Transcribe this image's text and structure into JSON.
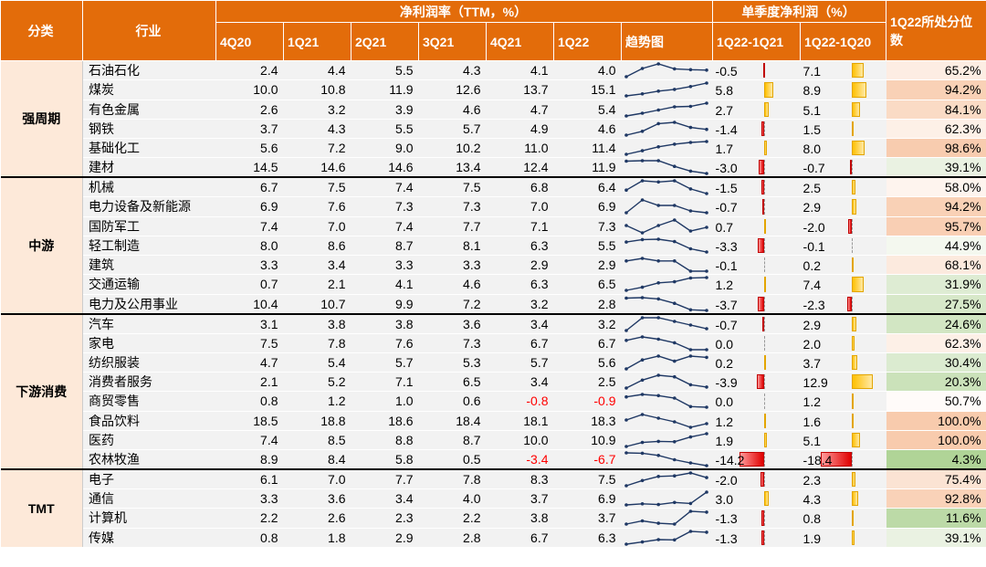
{
  "header": {
    "category": "分类",
    "industry": "行业",
    "ttm_group": "净利润率（TTM，%）",
    "quarter_group": "单季度净利润（%）",
    "percentile": "1Q22所处分位数",
    "periods": [
      "4Q20",
      "1Q21",
      "2Q21",
      "3Q21",
      "4Q21",
      "1Q22"
    ],
    "trend": "趋势图",
    "diff1": "1Q22-1Q21",
    "diff2": "1Q22-1Q20"
  },
  "colors": {
    "header_bg": "#e36c0a",
    "category_bg": "#fde9d9",
    "negative_text": "#ff0000",
    "bar_positive": "#ffc000",
    "bar_negative": "#e00000"
  },
  "chart_data": {
    "type": "table",
    "bar_scale_max_abs": 18.4,
    "groups": [
      {
        "name": "强周期",
        "rows": [
          {
            "industry": "石油石化",
            "ttm": [
              2.4,
              4.4,
              5.5,
              4.3,
              4.1,
              4.0
            ],
            "d1": -0.5,
            "d2": 7.1,
            "pct": "65.2%",
            "pct_value": 65.2
          },
          {
            "industry": "煤炭",
            "ttm": [
              10.0,
              10.8,
              11.9,
              12.6,
              13.7,
              15.1
            ],
            "d1": 5.8,
            "d2": 8.9,
            "pct": "94.2%",
            "pct_value": 94.2
          },
          {
            "industry": "有色金属",
            "ttm": [
              2.6,
              3.2,
              3.9,
              4.6,
              4.7,
              5.4
            ],
            "d1": 2.7,
            "d2": 5.1,
            "pct": "84.1%",
            "pct_value": 84.1
          },
          {
            "industry": "钢铁",
            "ttm": [
              3.7,
              4.3,
              5.5,
              5.7,
              4.9,
              4.6
            ],
            "d1": -1.4,
            "d2": 1.5,
            "pct": "62.3%",
            "pct_value": 62.3
          },
          {
            "industry": "基础化工",
            "ttm": [
              5.6,
              7.2,
              9.0,
              10.2,
              11.0,
              11.4
            ],
            "d1": 1.7,
            "d2": 8.0,
            "pct": "98.6%",
            "pct_value": 98.6
          },
          {
            "industry": "建材",
            "ttm": [
              14.5,
              14.6,
              14.6,
              13.4,
              12.4,
              11.9
            ],
            "d1": -3.0,
            "d2": -0.7,
            "pct": "39.1%",
            "pct_value": 39.1
          }
        ]
      },
      {
        "name": "中游",
        "rows": [
          {
            "industry": "机械",
            "ttm": [
              6.7,
              7.5,
              7.4,
              7.5,
              6.8,
              6.4
            ],
            "d1": -1.5,
            "d2": 2.5,
            "pct": "58.0%",
            "pct_value": 58.0
          },
          {
            "industry": "电力设备及新能源",
            "ttm": [
              6.9,
              7.6,
              7.3,
              7.3,
              7.0,
              6.9
            ],
            "d1": -0.7,
            "d2": 2.9,
            "pct": "94.2%",
            "pct_value": 94.2
          },
          {
            "industry": "国防军工",
            "ttm": [
              7.4,
              7.0,
              7.4,
              7.7,
              7.1,
              7.3
            ],
            "d1": 0.7,
            "d2": -2.0,
            "pct": "95.7%",
            "pct_value": 95.7
          },
          {
            "industry": "轻工制造",
            "ttm": [
              8.0,
              8.6,
              8.7,
              8.1,
              6.3,
              5.5
            ],
            "d1": -3.3,
            "d2": -0.1,
            "pct": "44.9%",
            "pct_value": 44.9
          },
          {
            "industry": "建筑",
            "ttm": [
              3.3,
              3.4,
              3.3,
              3.3,
              2.9,
              2.9
            ],
            "d1": -0.1,
            "d2": 0.2,
            "pct": "68.1%",
            "pct_value": 68.1
          },
          {
            "industry": "交通运输",
            "ttm": [
              0.7,
              2.1,
              4.1,
              4.6,
              6.3,
              6.5
            ],
            "d1": 1.2,
            "d2": 7.4,
            "pct": "31.9%",
            "pct_value": 31.9
          },
          {
            "industry": "电力及公用事业",
            "ttm": [
              10.4,
              10.7,
              9.9,
              7.2,
              3.2,
              2.8
            ],
            "d1": -3.7,
            "d2": -2.3,
            "pct": "27.5%",
            "pct_value": 27.5
          }
        ]
      },
      {
        "name": "下游消费",
        "rows": [
          {
            "industry": "汽车",
            "ttm": [
              3.1,
              3.8,
              3.8,
              3.6,
              3.4,
              3.2
            ],
            "d1": -0.7,
            "d2": 2.9,
            "pct": "24.6%",
            "pct_value": 24.6
          },
          {
            "industry": "家电",
            "ttm": [
              7.5,
              7.8,
              7.6,
              7.3,
              6.7,
              6.7
            ],
            "d1": 0.0,
            "d2": 2.0,
            "pct": "62.3%",
            "pct_value": 62.3
          },
          {
            "industry": "纺织服装",
            "ttm": [
              4.7,
              5.4,
              5.7,
              5.3,
              5.7,
              5.6
            ],
            "d1": 0.2,
            "d2": 3.7,
            "pct": "30.4%",
            "pct_value": 30.4
          },
          {
            "industry": "消费者服务",
            "ttm": [
              2.1,
              5.2,
              7.1,
              6.5,
              3.4,
              2.5
            ],
            "d1": -3.9,
            "d2": 12.9,
            "pct": "20.3%",
            "pct_value": 20.3
          },
          {
            "industry": "商贸零售",
            "ttm": [
              0.8,
              1.2,
              1.0,
              0.6,
              -0.8,
              -0.9
            ],
            "d1": 0.0,
            "d2": 1.2,
            "pct": "50.7%",
            "pct_value": 50.7
          },
          {
            "industry": "食品饮料",
            "ttm": [
              18.5,
              18.8,
              18.6,
              18.4,
              18.1,
              18.3
            ],
            "d1": 1.2,
            "d2": 1.6,
            "pct": "100.0%",
            "pct_value": 100.0
          },
          {
            "industry": "医药",
            "ttm": [
              7.4,
              8.5,
              8.8,
              8.7,
              10.0,
              10.9
            ],
            "d1": 1.9,
            "d2": 5.1,
            "pct": "100.0%",
            "pct_value": 100.0
          },
          {
            "industry": "农林牧渔",
            "ttm": [
              8.9,
              8.4,
              5.8,
              0.5,
              -3.4,
              -6.7
            ],
            "d1": -14.2,
            "d2": -18.4,
            "pct": "4.3%",
            "pct_value": 4.3
          }
        ]
      },
      {
        "name": "TMT",
        "rows": [
          {
            "industry": "电子",
            "ttm": [
              6.1,
              7.0,
              7.7,
              7.8,
              8.3,
              7.5
            ],
            "d1": -2.0,
            "d2": 2.3,
            "pct": "75.4%",
            "pct_value": 75.4
          },
          {
            "industry": "通信",
            "ttm": [
              3.3,
              3.6,
              3.4,
              4.0,
              3.7,
              6.9
            ],
            "d1": 3.0,
            "d2": 4.3,
            "pct": "92.8%",
            "pct_value": 92.8
          },
          {
            "industry": "计算机",
            "ttm": [
              2.2,
              2.6,
              2.3,
              2.2,
              3.8,
              3.7
            ],
            "d1": -1.3,
            "d2": 0.8,
            "pct": "11.6%",
            "pct_value": 11.6
          },
          {
            "industry": "传媒",
            "ttm": [
              0.8,
              1.8,
              2.9,
              2.8,
              6.7,
              6.3
            ],
            "d1": -1.3,
            "d2": 1.9,
            "pct": "39.1%",
            "pct_value": 39.1
          }
        ]
      }
    ]
  }
}
